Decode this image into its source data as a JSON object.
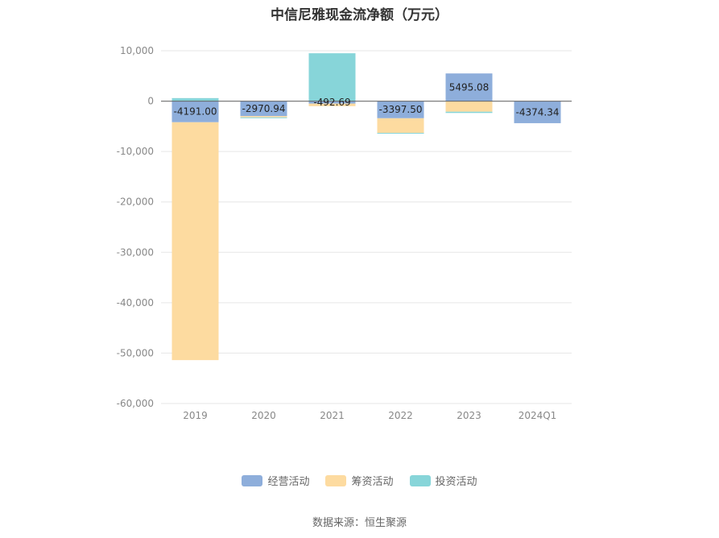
{
  "chart_data": {
    "type": "bar",
    "stacked": true,
    "title": "中信尼雅现金流净额（万元）",
    "categories": [
      "2019",
      "2020",
      "2021",
      "2022",
      "2023",
      "2024Q1"
    ],
    "ylim": [
      -60000,
      10000
    ],
    "yticks": [
      10000,
      0,
      -10000,
      -20000,
      -30000,
      -40000,
      -50000,
      -60000
    ],
    "ytick_labels": [
      "10,000",
      "0",
      "-10,000",
      "-20,000",
      "-30,000",
      "-40,000",
      "-50,000",
      "-60,000"
    ],
    "grid": true,
    "legend_position": "bottom",
    "series": [
      {
        "name": "经营活动",
        "color": "#8eaedb",
        "values": [
          -4191.0,
          -2970.94,
          -492.69,
          -3397.5,
          5495.08,
          -4374.34
        ]
      },
      {
        "name": "筹资活动",
        "color": "#fddba0",
        "values": [
          -47200,
          -250,
          -500,
          -2900,
          -2100,
          0
        ]
      },
      {
        "name": "投资活动",
        "color": "#87d5d9",
        "values": [
          600,
          -150,
          9500,
          -150,
          -250,
          0
        ]
      }
    ],
    "data_labels": [
      "-4191.00",
      "-2970.94",
      "-492.69",
      "-3397.50",
      "5495.08",
      "-4374.34"
    ]
  },
  "footer": {
    "source": "数据来源：恒生聚源"
  }
}
